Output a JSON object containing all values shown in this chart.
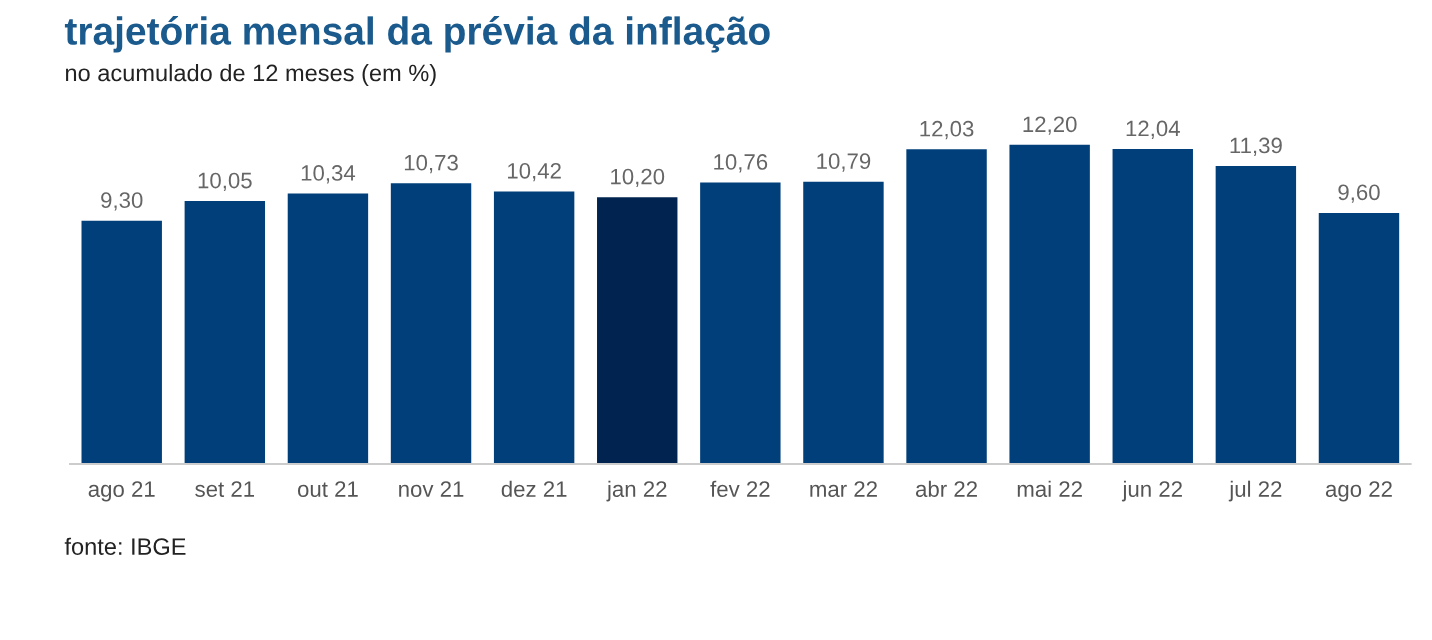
{
  "chart_data": {
    "type": "bar",
    "title": "trajetória mensal da prévia da inflação",
    "subtitle": "no acumulado de 12 meses (em %)",
    "categories": [
      "ago 21",
      "set 21",
      "out 21",
      "nov 21",
      "dez 21",
      "jan 22",
      "fev 22",
      "mar 22",
      "abr 22",
      "mai 22",
      "jun 22",
      "jul 22",
      "ago 22"
    ],
    "values": [
      9.3,
      10.05,
      10.34,
      10.73,
      10.42,
      10.2,
      10.76,
      10.79,
      12.03,
      12.2,
      12.04,
      11.39,
      9.6
    ],
    "value_labels": [
      "9,30",
      "10,05",
      "10,34",
      "10,73",
      "10,42",
      "10,20",
      "10,76",
      "10,79",
      "12,03",
      "12,20",
      "12,04",
      "11,39",
      "9,60"
    ],
    "colors": [
      "#003f7a",
      "#003f7a",
      "#003f7a",
      "#003f7a",
      "#003f7a",
      "#00244f",
      "#003f7a",
      "#003f7a",
      "#003f7a",
      "#003f7a",
      "#003f7a",
      "#003f7a",
      "#003f7a"
    ],
    "annotations": [
      "fonte: IBGE"
    ],
    "grid": false,
    "legend": false
  }
}
